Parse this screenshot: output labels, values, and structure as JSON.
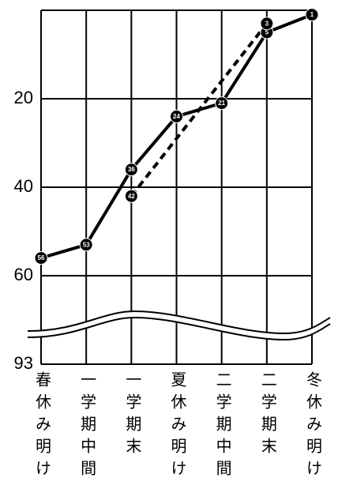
{
  "chart_data": {
    "type": "line",
    "categories": [
      "春休み明け",
      "一学期中間",
      "一学期末",
      "夏休み明け",
      "二学期中間",
      "二学期末",
      "冬休み明け"
    ],
    "series": [
      {
        "values": [
          56,
          53,
          36,
          24,
          21,
          5,
          1
        ],
        "color": "#000000",
        "dash": false
      },
      {
        "values": [
          null,
          null,
          42,
          null,
          null,
          3,
          null
        ],
        "color": "#000000",
        "dash": true,
        "connect_gaps": true
      }
    ],
    "ylim": [
      0,
      93
    ],
    "yticks": [
      20,
      40,
      60,
      93
    ],
    "y_inverted": true,
    "axis_break": true,
    "grid": true
  }
}
